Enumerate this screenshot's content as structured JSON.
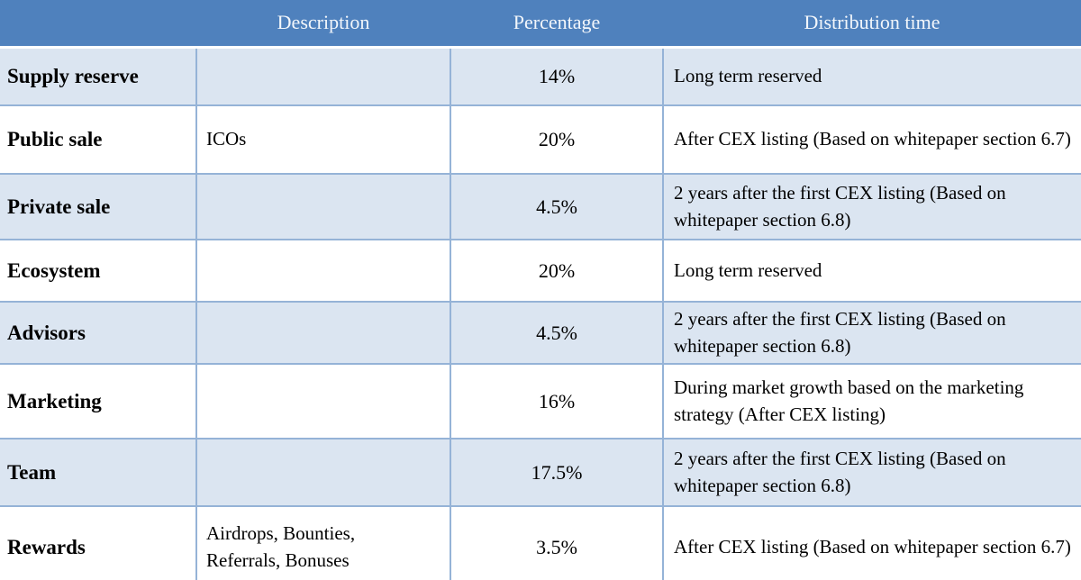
{
  "table": {
    "header": {
      "category": "",
      "description": "Description",
      "percentage": "Percentage",
      "distribution_time": "Distribution time"
    },
    "rows": [
      {
        "category": "Supply reserve",
        "description": "",
        "percentage": "14%",
        "distribution_time": "Long term reserved"
      },
      {
        "category": "Public sale",
        "description": "ICOs",
        "percentage": "20%",
        "distribution_time": "After CEX listing (Based on whitepaper section 6.7)"
      },
      {
        "category": "Private sale",
        "description": "",
        "percentage": "4.5%",
        "distribution_time": "2 years after the first CEX listing (Based on whitepaper section 6.8)"
      },
      {
        "category": "Ecosystem",
        "description": "",
        "percentage": "20%",
        "distribution_time": "Long term reserved"
      },
      {
        "category": "Advisors",
        "description": "",
        "percentage": "4.5%",
        "distribution_time": "2 years after the first CEX listing (Based on whitepaper section 6.8)"
      },
      {
        "category": "Marketing",
        "description": "",
        "percentage": "16%",
        "distribution_time": "During market growth based on the marketing strategy (After CEX listing)"
      },
      {
        "category": "Team",
        "description": "",
        "percentage": "17.5%",
        "distribution_time": "2 years after the first CEX listing (Based on whitepaper section 6.8)"
      },
      {
        "category": "Rewards",
        "description": "Airdrops, Bounties, Referrals, Bonuses",
        "percentage": "3.5%",
        "distribution_time": "After CEX listing (Based on whitepaper section 6.7)"
      }
    ],
    "colors": {
      "header_bg": "#4f81bd",
      "header_text": "#f2f6fb",
      "row_light_bg": "#dbe5f1",
      "row_white_bg": "#ffffff",
      "border": "#95b3d7",
      "body_text": "#000000"
    }
  }
}
